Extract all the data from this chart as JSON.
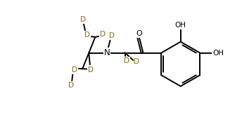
{
  "bg_color": "#ffffff",
  "line_color": "#000000",
  "d_color": "#8B6914",
  "lw": 1.4,
  "xlim": [
    0,
    10
  ],
  "ylim": [
    0,
    6
  ]
}
